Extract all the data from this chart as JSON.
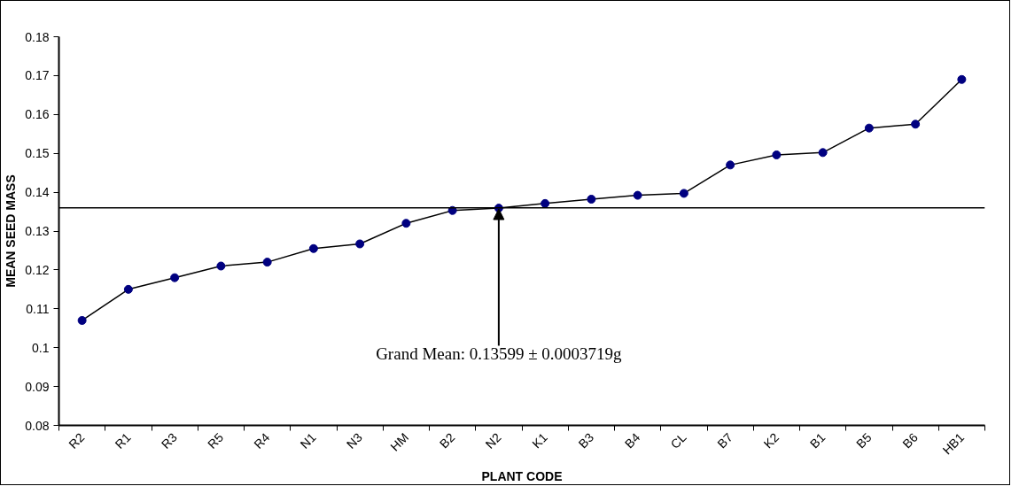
{
  "chart_data": {
    "type": "line",
    "xlabel": "PLANT CODE",
    "ylabel": "MEAN SEED MASS",
    "categories": [
      "R2",
      "R1",
      "R3",
      "R5",
      "R4",
      "N1",
      "N3",
      "HM",
      "B2",
      "N2",
      "K1",
      "B3",
      "B4",
      "CL",
      "B7",
      "K2",
      "B1",
      "B5",
      "B6",
      "HB1"
    ],
    "series": [
      {
        "color": "#000080",
        "values": [
          0.107,
          0.115,
          0.118,
          0.121,
          0.122,
          0.1255,
          0.1267,
          0.132,
          0.1353,
          0.1359,
          0.1371,
          0.1382,
          0.1392,
          0.1397,
          0.147,
          0.1496,
          0.1502,
          0.1565,
          0.1575,
          0.169
        ]
      }
    ],
    "ylim": [
      0.08,
      0.18
    ],
    "yticks": [
      0.08,
      0.09,
      0.1,
      0.11,
      0.12,
      0.13,
      0.14,
      0.15,
      0.16,
      0.17,
      0.18
    ],
    "marker": "circle",
    "line_style": "solid",
    "grid": false,
    "ref_lines": [
      {
        "axis": "y",
        "value": 0.13599,
        "color": "#000000"
      }
    ],
    "annotations": [
      {
        "text": "Grand Mean: 0.13599 ± 0.0003719g",
        "x": "N2",
        "y": 0.13599
      }
    ]
  }
}
